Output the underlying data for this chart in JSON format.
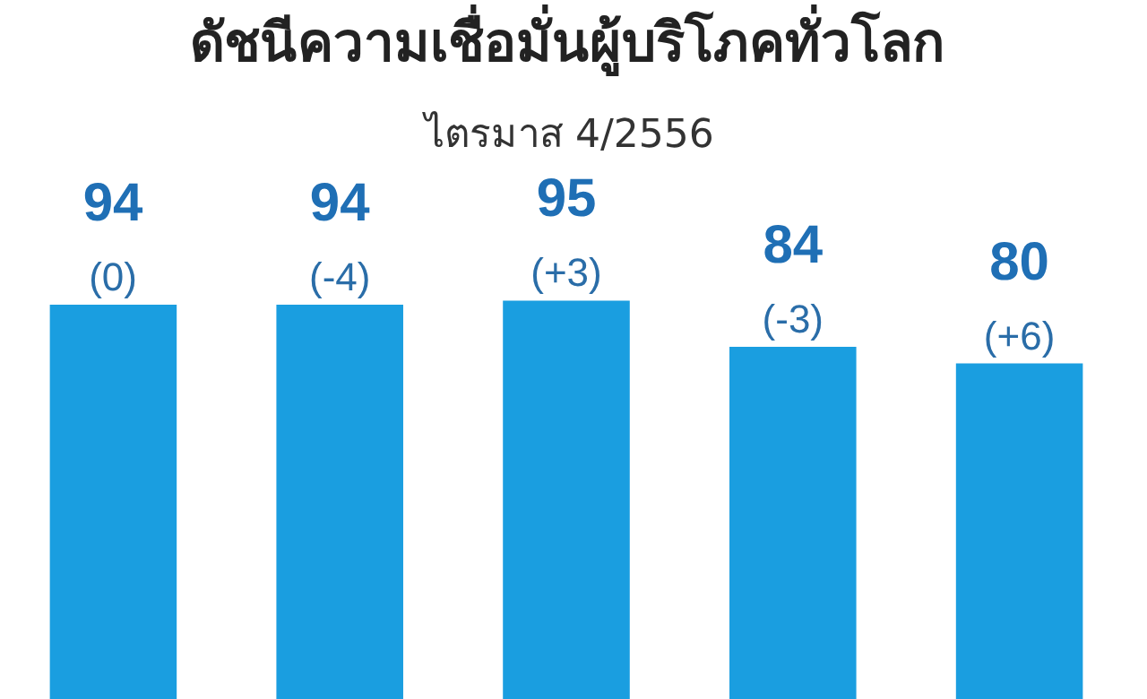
{
  "chart_data": {
    "type": "bar",
    "title": "ดัชนีความเชื่อมั่นผู้บริโภคทั่วโลก",
    "subtitle": "ไตรมาส 4/2556",
    "categories": [
      null,
      null,
      null,
      null,
      null
    ],
    "values": [
      94,
      94,
      95,
      84,
      80
    ],
    "value_labels": [
      "94\n(0)",
      "94\n(-4)",
      "95\n(+3)",
      "84\n(-3)",
      "80\n(+6)"
    ],
    "color": "#1a9ee0",
    "tick_labels": false,
    "legend": false
  }
}
